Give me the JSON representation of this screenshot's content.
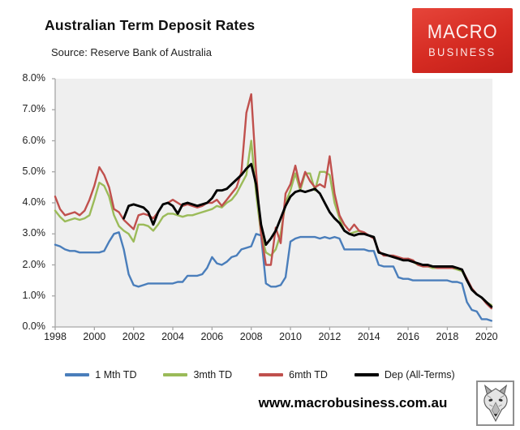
{
  "header": {
    "title": "Australian Term Deposit Rates",
    "subtitle": "Source: Reserve Bank of Australia"
  },
  "logo": {
    "line1": "MACRO",
    "line2": "BUSINESS",
    "bg_color": "#d52b22"
  },
  "footer": {
    "url": "www.macrobusiness.com.au",
    "wolf_icon": "wolf-head-sketch"
  },
  "chart_data": {
    "type": "line",
    "title": "Australian Term Deposit Rates",
    "source_note": "Source: Reserve Bank of Australia",
    "xlabel": "",
    "ylabel": "",
    "xlim": [
      1998,
      2020.3
    ],
    "ylim": [
      0,
      8
    ],
    "grid": false,
    "plot_bg": "#efefef",
    "axis_color": "#a6a6a6",
    "legend_position": "bottom",
    "x_ticks": [
      1998,
      2000,
      2002,
      2004,
      2006,
      2008,
      2010,
      2012,
      2014,
      2016,
      2018,
      2020
    ],
    "x_tick_labels": [
      "1998",
      "2000",
      "2002",
      "2004",
      "2006",
      "2008",
      "2010",
      "2012",
      "2014",
      "2016",
      "2018",
      "2020"
    ],
    "y_ticks": [
      0,
      1,
      2,
      3,
      4,
      5,
      6,
      7,
      8
    ],
    "y_tick_labels": [
      "0.0%",
      "1.0%",
      "2.0%",
      "3.0%",
      "4.0%",
      "5.0%",
      "6.0%",
      "7.0%",
      "8.0%"
    ],
    "x": [
      1998,
      1998.25,
      1998.5,
      1998.75,
      1999,
      1999.25,
      1999.5,
      1999.75,
      2000,
      2000.25,
      2000.5,
      2000.75,
      2001,
      2001.25,
      2001.5,
      2001.75,
      2002,
      2002.25,
      2002.5,
      2002.75,
      2003,
      2003.25,
      2003.5,
      2003.75,
      2004,
      2004.25,
      2004.5,
      2004.75,
      2005,
      2005.25,
      2005.5,
      2005.75,
      2006,
      2006.25,
      2006.5,
      2006.75,
      2007,
      2007.25,
      2007.5,
      2007.75,
      2008,
      2008.25,
      2008.5,
      2008.75,
      2009,
      2009.25,
      2009.5,
      2009.75,
      2010,
      2010.25,
      2010.5,
      2010.75,
      2011,
      2011.25,
      2011.5,
      2011.75,
      2012,
      2012.25,
      2012.5,
      2012.75,
      2013,
      2013.25,
      2013.5,
      2013.75,
      2014,
      2014.25,
      2014.5,
      2014.75,
      2015,
      2015.25,
      2015.5,
      2015.75,
      2016,
      2016.25,
      2016.5,
      2016.75,
      2017,
      2017.25,
      2017.5,
      2017.75,
      2018,
      2018.25,
      2018.5,
      2018.75,
      2019,
      2019.25,
      2019.5,
      2019.75,
      2020,
      2020.25
    ],
    "series": [
      {
        "name": "1 Mth TD",
        "color": "#4a7ebb",
        "stroke_width": 2.4,
        "values": [
          2.65,
          2.6,
          2.5,
          2.45,
          2.45,
          2.4,
          2.4,
          2.4,
          2.4,
          2.4,
          2.45,
          2.75,
          3.0,
          3.05,
          2.5,
          1.7,
          1.35,
          1.3,
          1.35,
          1.4,
          1.4,
          1.4,
          1.4,
          1.4,
          1.4,
          1.45,
          1.45,
          1.65,
          1.65,
          1.65,
          1.7,
          1.9,
          2.25,
          2.05,
          2.0,
          2.1,
          2.25,
          2.3,
          2.5,
          2.55,
          2.6,
          3.0,
          2.95,
          1.4,
          1.3,
          1.3,
          1.35,
          1.6,
          2.75,
          2.85,
          2.9,
          2.9,
          2.9,
          2.9,
          2.85,
          2.9,
          2.85,
          2.9,
          2.85,
          2.5,
          2.5,
          2.5,
          2.5,
          2.5,
          2.45,
          2.45,
          2.0,
          1.95,
          1.95,
          1.95,
          1.6,
          1.55,
          1.55,
          1.5,
          1.5,
          1.5,
          1.5,
          1.5,
          1.5,
          1.5,
          1.5,
          1.45,
          1.45,
          1.4,
          0.8,
          0.55,
          0.5,
          0.25,
          0.25,
          0.2
        ]
      },
      {
        "name": "3mth TD",
        "color": "#9bbb59",
        "stroke_width": 2.4,
        "values": [
          3.75,
          3.55,
          3.4,
          3.45,
          3.5,
          3.45,
          3.5,
          3.6,
          4.1,
          4.65,
          4.55,
          4.2,
          3.6,
          3.25,
          3.1,
          3.0,
          2.75,
          3.3,
          3.3,
          3.25,
          3.1,
          3.3,
          3.55,
          3.65,
          3.65,
          3.6,
          3.55,
          3.6,
          3.6,
          3.65,
          3.7,
          3.75,
          3.8,
          3.9,
          3.85,
          4.0,
          4.1,
          4.3,
          4.6,
          4.9,
          6.0,
          4.3,
          3.0,
          2.4,
          2.3,
          2.5,
          3.0,
          4.0,
          4.4,
          4.95,
          4.4,
          4.95,
          4.95,
          4.4,
          5.0,
          5.0,
          4.9,
          4.0,
          3.5,
          3.1,
          3.0,
          3.05,
          3.1,
          3.0,
          2.95,
          2.9,
          2.4,
          2.35,
          2.3,
          2.25,
          2.2,
          2.15,
          2.2,
          2.1,
          2.0,
          1.95,
          1.95,
          1.9,
          1.9,
          1.9,
          1.9,
          1.9,
          1.85,
          1.8,
          1.5,
          1.2,
          1.05,
          0.95,
          0.8,
          0.7
        ]
      },
      {
        "name": "6mth TD",
        "color": "#c0504d",
        "stroke_width": 2.4,
        "values": [
          4.2,
          3.8,
          3.6,
          3.65,
          3.7,
          3.6,
          3.75,
          4.1,
          4.55,
          5.15,
          4.9,
          4.5,
          3.8,
          3.7,
          3.45,
          3.3,
          3.15,
          3.6,
          3.65,
          3.6,
          3.5,
          3.7,
          3.95,
          4.0,
          4.1,
          4.0,
          3.9,
          3.95,
          3.9,
          3.85,
          3.9,
          4.0,
          4.0,
          4.1,
          3.9,
          4.1,
          4.3,
          4.5,
          5.0,
          6.9,
          7.5,
          5.0,
          3.0,
          2.0,
          2.0,
          3.2,
          2.7,
          4.3,
          4.6,
          5.2,
          4.5,
          5.0,
          4.7,
          4.5,
          4.6,
          4.5,
          5.5,
          4.3,
          3.6,
          3.3,
          3.1,
          3.3,
          3.1,
          3.05,
          2.95,
          2.85,
          2.45,
          2.3,
          2.3,
          2.3,
          2.25,
          2.2,
          2.2,
          2.15,
          2.0,
          1.95,
          1.95,
          1.95,
          1.9,
          1.9,
          1.9,
          1.9,
          1.9,
          1.85,
          1.55,
          1.25,
          1.05,
          0.95,
          0.75,
          0.6
        ]
      },
      {
        "name": "Dep (All-Terms)",
        "color": "#000000",
        "stroke_width": 2.9,
        "values": [
          null,
          null,
          null,
          null,
          null,
          null,
          null,
          null,
          null,
          null,
          null,
          null,
          null,
          null,
          3.5,
          3.9,
          3.95,
          3.9,
          3.85,
          3.7,
          3.3,
          3.7,
          3.95,
          4.0,
          3.9,
          3.65,
          3.95,
          4.0,
          3.95,
          3.9,
          3.95,
          4.0,
          4.15,
          4.4,
          4.4,
          4.45,
          4.6,
          4.75,
          4.9,
          5.1,
          5.25,
          4.6,
          3.3,
          2.65,
          2.85,
          3.1,
          3.5,
          3.9,
          4.2,
          4.35,
          4.4,
          4.35,
          4.4,
          4.45,
          4.3,
          4.0,
          3.7,
          3.5,
          3.35,
          3.1,
          3.0,
          2.95,
          3.0,
          3.0,
          2.95,
          2.9,
          2.4,
          2.35,
          2.3,
          2.25,
          2.2,
          2.15,
          2.15,
          2.1,
          2.05,
          2.0,
          2.0,
          1.95,
          1.95,
          1.95,
          1.95,
          1.95,
          1.9,
          1.85,
          1.5,
          1.2,
          1.05,
          0.95,
          0.8,
          0.65
        ]
      }
    ]
  }
}
